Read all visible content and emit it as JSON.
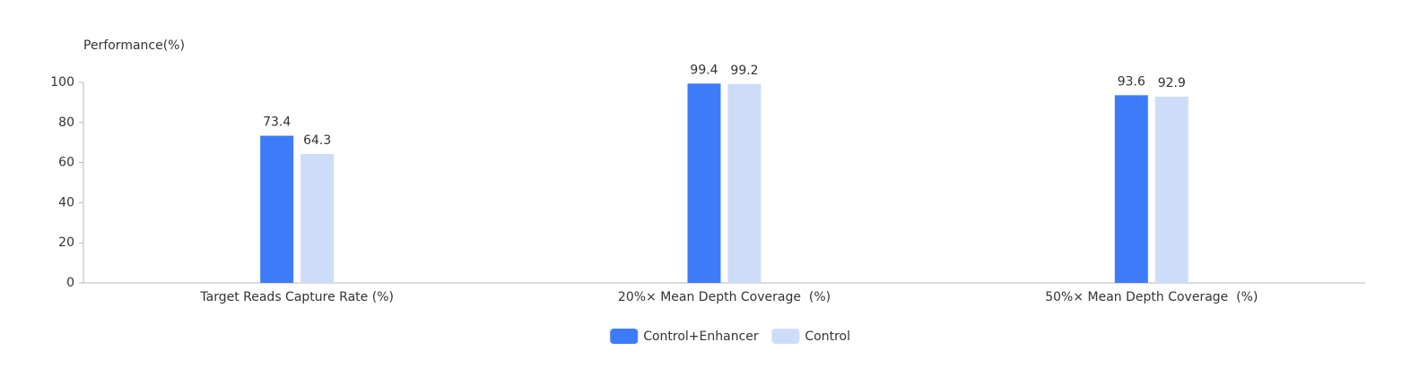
{
  "chart_data": {
    "type": "bar",
    "y_axis_label": "Performance(%)",
    "categories": [
      "Target Reads Capture Rate (%)",
      "20%× Mean Depth Coverage  (%)",
      "50%× Mean Depth Coverage  (%)"
    ],
    "series": [
      {
        "name": "Control+Enhancer",
        "color": "#3e7bfa",
        "values": [
          73.4,
          99.4,
          93.6
        ]
      },
      {
        "name": "Control",
        "color": "#cddcf8",
        "values": [
          64.3,
          99.2,
          92.9
        ]
      }
    ],
    "ylim": [
      0,
      100
    ],
    "yticks": [
      0,
      20,
      40,
      60,
      80,
      100
    ],
    "grid": false,
    "legend": "bottom"
  }
}
